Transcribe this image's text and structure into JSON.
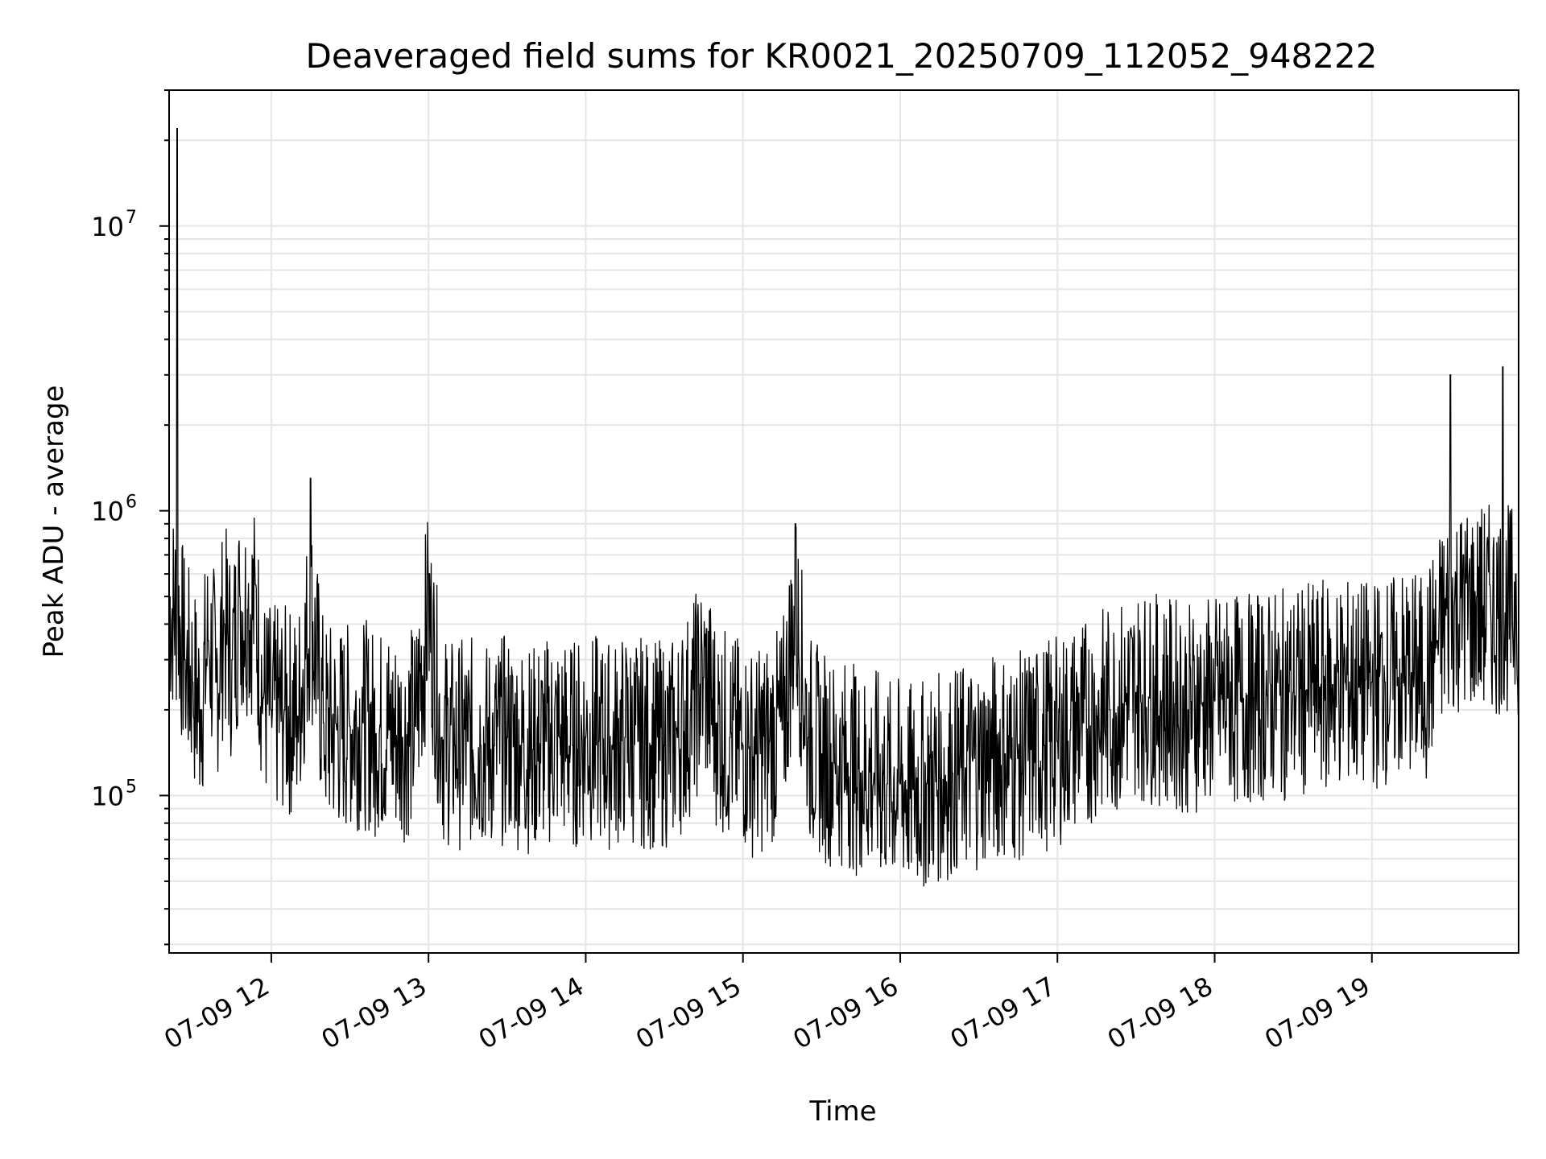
{
  "chart_data": {
    "type": "line",
    "title": "Deaveraged field sums for KR0021_20250709_112052_948222",
    "xlabel": "Time",
    "ylabel": "Peak ADU - average",
    "y_scale": "log",
    "ylim": [
      28000,
      30000000
    ],
    "xlim": [
      "2025-07-09 11:21",
      "2025-07-09 19:56"
    ],
    "x_ticks": [
      {
        "label": "07-09 12",
        "value": "2025-07-09 12:00"
      },
      {
        "label": "07-09 13",
        "value": "2025-07-09 13:00"
      },
      {
        "label": "07-09 14",
        "value": "2025-07-09 14:00"
      },
      {
        "label": "07-09 15",
        "value": "2025-07-09 15:00"
      },
      {
        "label": "07-09 16",
        "value": "2025-07-09 16:00"
      },
      {
        "label": "07-09 17",
        "value": "2025-07-09 17:00"
      },
      {
        "label": "07-09 18",
        "value": "2025-07-09 18:00"
      },
      {
        "label": "07-09 19",
        "value": "2025-07-09 19:00"
      }
    ],
    "y_ticks": [
      {
        "base": "10",
        "exp": "5",
        "value": 100000
      },
      {
        "base": "10",
        "exp": "6",
        "value": 1000000
      },
      {
        "base": "10",
        "exp": "7",
        "value": 10000000
      }
    ],
    "grid": true,
    "line_color": "#000000",
    "series": [
      {
        "x": [
          "2025-07-09 11:21",
          "2025-07-09 11:24",
          "2025-07-09 11:27",
          "2025-07-09 11:30",
          "2025-07-09 11:33",
          "2025-07-09 11:36",
          "2025-07-09 11:39",
          "2025-07-09 11:42",
          "2025-07-09 11:45",
          "2025-07-09 11:48",
          "2025-07-09 11:51",
          "2025-07-09 11:54",
          "2025-07-09 11:57",
          "2025-07-09 12:00",
          "2025-07-09 12:05",
          "2025-07-09 12:10",
          "2025-07-09 12:15",
          "2025-07-09 12:20",
          "2025-07-09 12:25",
          "2025-07-09 12:30",
          "2025-07-09 12:35",
          "2025-07-09 12:40",
          "2025-07-09 12:45",
          "2025-07-09 12:50",
          "2025-07-09 12:55",
          "2025-07-09 13:00",
          "2025-07-09 13:05",
          "2025-07-09 13:10",
          "2025-07-09 13:15",
          "2025-07-09 13:20",
          "2025-07-09 13:25",
          "2025-07-09 13:30",
          "2025-07-09 13:35",
          "2025-07-09 13:40",
          "2025-07-09 13:45",
          "2025-07-09 13:50",
          "2025-07-09 13:55",
          "2025-07-09 14:00",
          "2025-07-09 14:05",
          "2025-07-09 14:10",
          "2025-07-09 14:15",
          "2025-07-09 14:20",
          "2025-07-09 14:25",
          "2025-07-09 14:30",
          "2025-07-09 14:35",
          "2025-07-09 14:40",
          "2025-07-09 14:45",
          "2025-07-09 14:50",
          "2025-07-09 14:55",
          "2025-07-09 15:00",
          "2025-07-09 15:05",
          "2025-07-09 15:10",
          "2025-07-09 15:15",
          "2025-07-09 15:20",
          "2025-07-09 15:25",
          "2025-07-09 15:30",
          "2025-07-09 15:35",
          "2025-07-09 15:40",
          "2025-07-09 15:45",
          "2025-07-09 15:50",
          "2025-07-09 15:55",
          "2025-07-09 16:00",
          "2025-07-09 16:05",
          "2025-07-09 16:10",
          "2025-07-09 16:15",
          "2025-07-09 16:20",
          "2025-07-09 16:25",
          "2025-07-09 16:30",
          "2025-07-09 16:35",
          "2025-07-09 16:40",
          "2025-07-09 16:45",
          "2025-07-09 16:50",
          "2025-07-09 16:55",
          "2025-07-09 17:00",
          "2025-07-09 17:05",
          "2025-07-09 17:10",
          "2025-07-09 17:15",
          "2025-07-09 17:20",
          "2025-07-09 17:25",
          "2025-07-09 17:30",
          "2025-07-09 17:35",
          "2025-07-09 17:40",
          "2025-07-09 17:45",
          "2025-07-09 17:50",
          "2025-07-09 17:55",
          "2025-07-09 18:00",
          "2025-07-09 18:05",
          "2025-07-09 18:10",
          "2025-07-09 18:15",
          "2025-07-09 18:20",
          "2025-07-09 18:25",
          "2025-07-09 18:30",
          "2025-07-09 18:35",
          "2025-07-09 18:40",
          "2025-07-09 18:45",
          "2025-07-09 18:50",
          "2025-07-09 18:55",
          "2025-07-09 19:00",
          "2025-07-09 19:05",
          "2025-07-09 19:10",
          "2025-07-09 19:15",
          "2025-07-09 19:20",
          "2025-07-09 19:25",
          "2025-07-09 19:30",
          "2025-07-09 19:35",
          "2025-07-09 19:40",
          "2025-07-09 19:45",
          "2025-07-09 19:50",
          "2025-07-09 19:55"
        ],
        "y": [
          700000,
          22000000,
          300000,
          250000,
          200000,
          350000,
          250000,
          400000,
          300000,
          500000,
          450000,
          550000,
          220000,
          200000,
          200000,
          190000,
          1300000,
          180000,
          170000,
          175000,
          180000,
          165000,
          170000,
          160000,
          175000,
          600000,
          160000,
          150000,
          155000,
          150000,
          150000,
          160000,
          150000,
          145000,
          155000,
          160000,
          150000,
          160000,
          155000,
          150000,
          160000,
          155000,
          150000,
          150000,
          160000,
          200000,
          260000,
          180000,
          160000,
          150000,
          140000,
          155000,
          170000,
          900000,
          160000,
          140000,
          130000,
          130000,
          120000,
          120000,
          110000,
          110000,
          105000,
          110000,
          115000,
          120000,
          125000,
          130000,
          135000,
          140000,
          135000,
          145000,
          150000,
          155000,
          170000,
          180000,
          190000,
          200000,
          210000,
          230000,
          220000,
          215000,
          210000,
          200000,
          210000,
          215000,
          220000,
          215000,
          220000,
          225000,
          225000,
          230000,
          235000,
          240000,
          245000,
          250000,
          240000,
          250000,
          250000,
          260000,
          270000,
          250000,
          350000,
          3000000,
          700000,
          500000,
          550000,
          3200000,
          600000
        ]
      }
    ]
  }
}
